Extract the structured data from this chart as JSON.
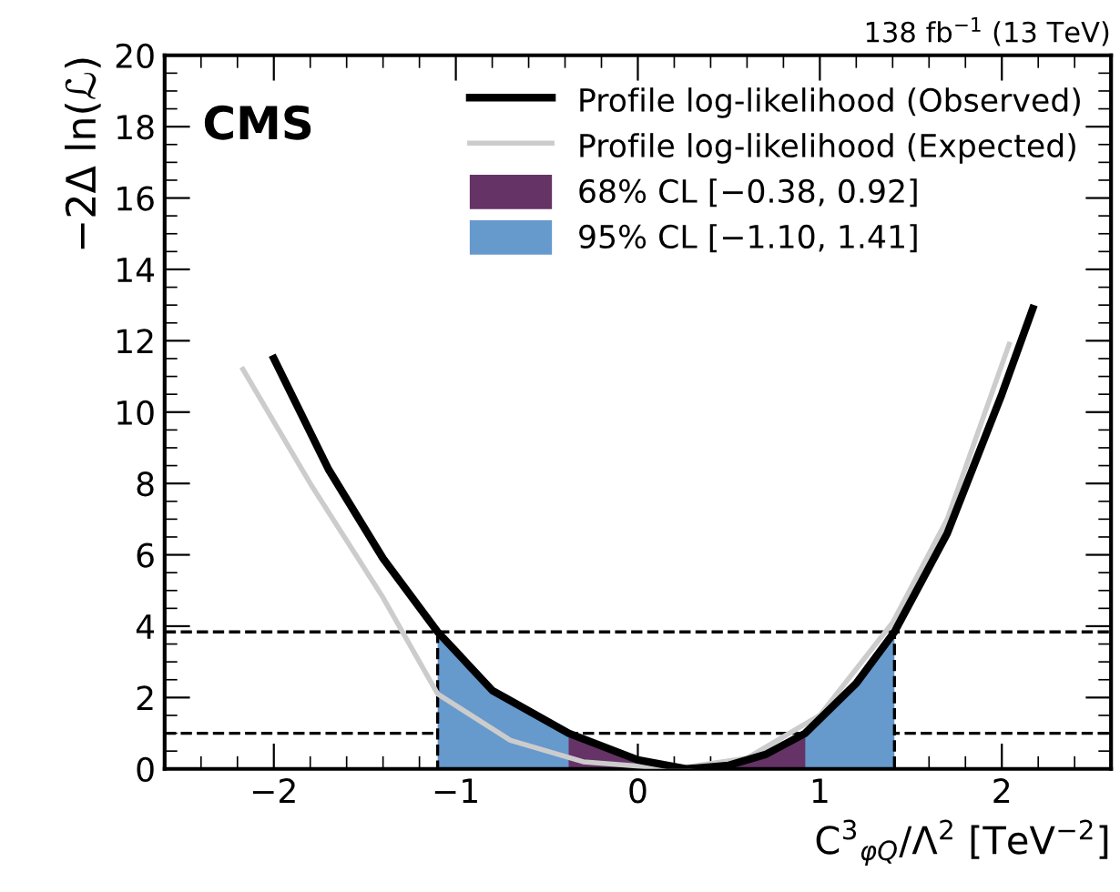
{
  "chart_data": {
    "type": "line",
    "xlabel": "C$^{3}$$_{φQ}$/Λ$^{2}$ [TeV$^{−2}$]",
    "ylabel": "−2Δ ln(ℒ)",
    "annotations": [
      "CMS",
      "138 fb$^{−1}$ (13 TeV)"
    ],
    "series": [
      {
        "name": "Profile log-likelihood (Observed)",
        "color": "#000000",
        "x": [
          -2.0,
          -1.7,
          -1.4,
          -1.1,
          -0.8,
          -0.38,
          0.0,
          0.27,
          0.5,
          0.7,
          0.92,
          1.2,
          1.41,
          1.7,
          2.0,
          2.17
        ],
        "values": [
          11.5,
          8.4,
          5.9,
          3.84,
          2.2,
          1.0,
          0.25,
          0.0,
          0.1,
          0.4,
          1.0,
          2.4,
          3.84,
          6.6,
          10.5,
          12.9
        ]
      },
      {
        "name": "Profile log-likelihood (Expected)",
        "color": "#cccccc",
        "x": [
          -2.17,
          -1.8,
          -1.4,
          -1.1,
          -0.7,
          -0.3,
          0.2,
          0.6,
          1.0,
          1.4,
          1.7,
          2.04
        ],
        "values": [
          11.2,
          8.0,
          4.8,
          2.1,
          0.8,
          0.2,
          0.0,
          0.3,
          1.5,
          4.1,
          7.0,
          11.9
        ]
      },
      {
        "type": "area",
        "name": "68% CL [−0.38, 0.92]",
        "color": "#663366",
        "x": [
          -0.38,
          0.0,
          0.27,
          0.5,
          0.7,
          0.92
        ],
        "values": [
          1.0,
          0.25,
          0.0,
          0.1,
          0.4,
          1.0
        ]
      },
      {
        "type": "area",
        "name": "95% CL [−1.10, 1.41]",
        "color": "#6699cc",
        "line_style": "dashed",
        "x": [
          -1.1,
          -0.8,
          -0.38,
          0.0,
          0.27,
          0.5,
          0.7,
          0.92,
          1.2,
          1.41
        ],
        "values": [
          3.84,
          2.2,
          1.0,
          0.25,
          0.0,
          0.1,
          0.4,
          1.0,
          2.4,
          3.84
        ]
      }
    ],
    "ref_lines": [
      {
        "axis": "y",
        "value": 1,
        "line_style": "dashed",
        "color": "#000000"
      },
      {
        "axis": "y",
        "value": 3.84,
        "line_style": "dashed",
        "color": "#000000"
      }
    ],
    "xlim": [
      -2.6,
      2.6
    ],
    "ylim": [
      0,
      20
    ],
    "xticks": [
      -2,
      -1,
      0,
      1,
      2
    ],
    "yticks": [
      0,
      2,
      4,
      6,
      8,
      10,
      12,
      14,
      16,
      18,
      20
    ],
    "legend": "top right",
    "grid": false,
    "line_style": "solid",
    "marker": "none"
  }
}
